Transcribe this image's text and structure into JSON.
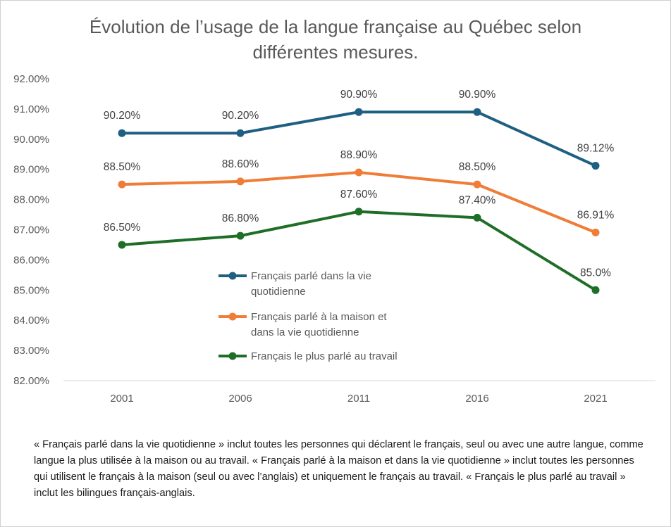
{
  "chart_data": {
    "type": "line",
    "title": "Évolution de l’usage de la langue française au Québec selon différentes mesures.",
    "xlabel": "",
    "ylabel": "",
    "categories": [
      "2001",
      "2006",
      "2011",
      "2016",
      "2021"
    ],
    "ylim": [
      82,
      92
    ],
    "ytick_labels": [
      "82.00%",
      "83.00%",
      "84.00%",
      "85.00%",
      "86.00%",
      "87.00%",
      "88.00%",
      "89.00%",
      "90.00%",
      "91.00%",
      "92.00%"
    ],
    "grid": false,
    "legend_position": "center",
    "series": [
      {
        "name": "Français parlé dans la vie quotidienne",
        "legend_lines": [
          "Français parlé dans la vie",
          "quotidienne"
        ],
        "color": "#1f5f82",
        "values": [
          90.2,
          90.2,
          90.9,
          90.9,
          89.12
        ],
        "labels": [
          "90.20%",
          "90.20%",
          "90.90%",
          "90.90%",
          "89.12%"
        ]
      },
      {
        "name": "Français parlé à la maison et dans la vie quotidienne",
        "legend_lines": [
          "Français parlé à la maison et",
          "dans la vie quotidienne"
        ],
        "color": "#ef7d38",
        "values": [
          88.5,
          88.6,
          88.9,
          88.5,
          86.91
        ],
        "labels": [
          "88.50%",
          "88.60%",
          "88.90%",
          "88.50%",
          "86.91%"
        ]
      },
      {
        "name": "Français le plus parlé au travail",
        "legend_lines": [
          "Français le plus parlé au travail"
        ],
        "color": "#1f6e27",
        "values": [
          86.5,
          86.8,
          87.6,
          87.4,
          85.0
        ],
        "labels": [
          "86.50%",
          "86.80%",
          "87.60%",
          "87.40%",
          "85.0%"
        ]
      }
    ]
  },
  "footnote": "« Français parlé dans la vie quotidienne » inclut toutes les personnes qui déclarent le français, seul ou avec une autre langue, comme langue la plus utilisée à la maison ou au travail. « Français parlé à la maison et dans la vie quotidienne » inclut toutes les personnes qui utilisent le français à la maison (seul ou avec l’anglais) et uniquement le français au travail.  « Français le plus parlé au travail » inclut les bilingues français-anglais."
}
